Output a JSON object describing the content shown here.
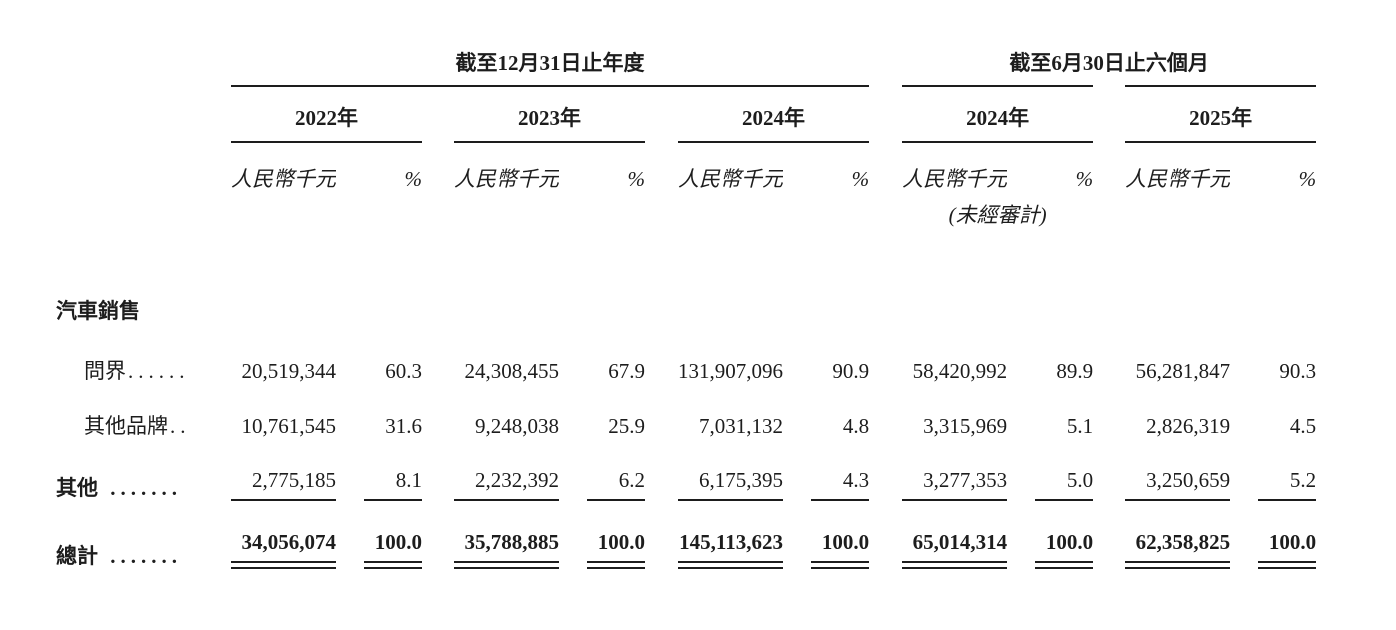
{
  "colors": {
    "text": "#1d1d1d",
    "rule": "#1d1d1d",
    "background": "#ffffff"
  },
  "table": {
    "span_headers": [
      {
        "title": "截至12月31日止年度"
      },
      {
        "title": "截至6月30日止六個月"
      }
    ],
    "year_headers": [
      "2022年",
      "2023年",
      "2024年",
      "2024年",
      "2025年"
    ],
    "unit_label": "人民幣千元",
    "percent_label": "%",
    "unaudited_label": "(未經審計)",
    "section": {
      "label": "汽車銷售"
    },
    "rows": [
      {
        "label": "問界",
        "leader": "......",
        "values": [
          "20,519,344",
          "60.3",
          "24,308,455",
          "67.9",
          "131,907,096",
          "90.9",
          "58,420,992",
          "89.9",
          "56,281,847",
          "90.3"
        ]
      },
      {
        "label": "其他品牌",
        "leader": "..",
        "values": [
          "10,761,545",
          "31.6",
          "9,248,038",
          "25.9",
          "7,031,132",
          "4.8",
          "3,315,969",
          "5.1",
          "2,826,319",
          "4.5"
        ]
      },
      {
        "label": "其他",
        "leader": " .......",
        "values": [
          "2,775,185",
          "8.1",
          "2,232,392",
          "6.2",
          "6,175,395",
          "4.3",
          "3,277,353",
          "5.0",
          "3,250,659",
          "5.2"
        ]
      }
    ],
    "total": {
      "label": "總計",
      "leader": " .......",
      "values": [
        "34,056,074",
        "100.0",
        "35,788,885",
        "100.0",
        "145,113,623",
        "100.0",
        "65,014,314",
        "100.0",
        "62,358,825",
        "100.0"
      ]
    }
  }
}
